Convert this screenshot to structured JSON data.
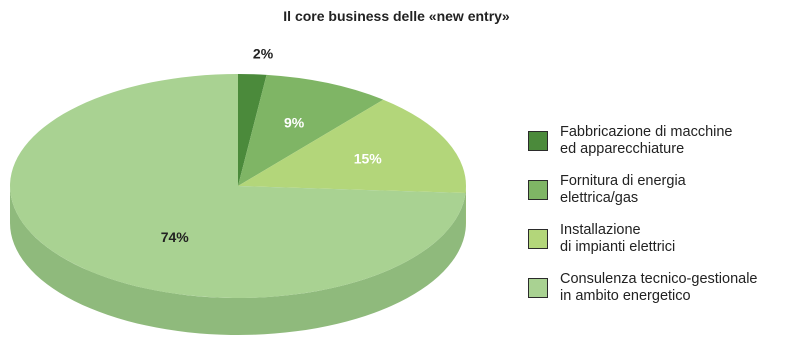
{
  "chart_data": {
    "type": "pie",
    "title": "Il core business delle «new entry»",
    "slices": [
      {
        "label": "Fabbricazione di macchine\ned apparecchiature",
        "value": 2,
        "value_label": "2%",
        "color": "#4b8a3b",
        "side_color": "#3f7431",
        "label_color": "#222222"
      },
      {
        "label": "Fornitura di energia\nelettrica/gas",
        "value": 9,
        "value_label": "9%",
        "color": "#7fb565",
        "side_color": "#6b9a54",
        "label_color": "#ffffff"
      },
      {
        "label": "Installazione\ndi impianti elettrici",
        "value": 15,
        "value_label": "15%",
        "color": "#b3d67a",
        "side_color": "#97b866",
        "label_color": "#ffffff"
      },
      {
        "label": "Consulenza tecnico-gestionale\nin ambito energetico",
        "value": 74,
        "value_label": "74%",
        "color": "#a9d292",
        "side_color": "#8fba7c",
        "label_color": "#222222"
      }
    ],
    "legend_position": "right"
  }
}
